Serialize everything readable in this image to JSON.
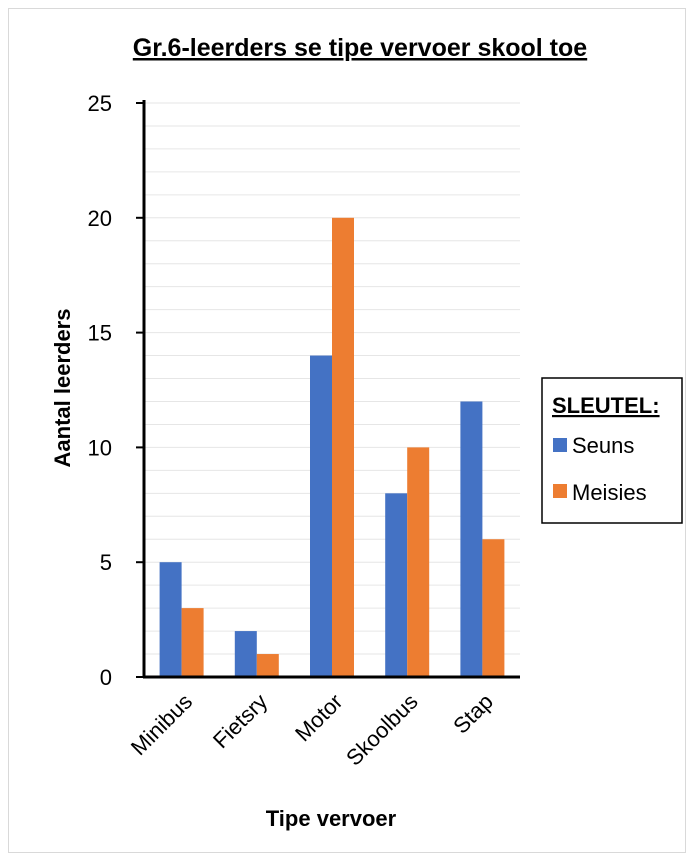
{
  "chart_data": {
    "type": "bar",
    "title": "Gr.6-leerders se tipe vervoer skool toe",
    "xlabel": "Tipe vervoer",
    "ylabel": "Aantal leerders",
    "categories": [
      "Minibus",
      "Fietsry",
      "Motor",
      "Skoolbus",
      "Stap"
    ],
    "series": [
      {
        "name": "Seuns",
        "values": [
          5,
          2,
          14,
          8,
          12
        ],
        "color": "#4472c4"
      },
      {
        "name": "Meisies",
        "values": [
          3,
          1,
          20,
          10,
          6
        ],
        "color": "#ed7d31"
      }
    ],
    "ylim": [
      0,
      25
    ],
    "yticks": [
      "0",
      "5",
      "10",
      "15",
      "20",
      "25"
    ],
    "grid": true,
    "legend": {
      "title": "SLEUTEL:",
      "placement": "right"
    }
  }
}
